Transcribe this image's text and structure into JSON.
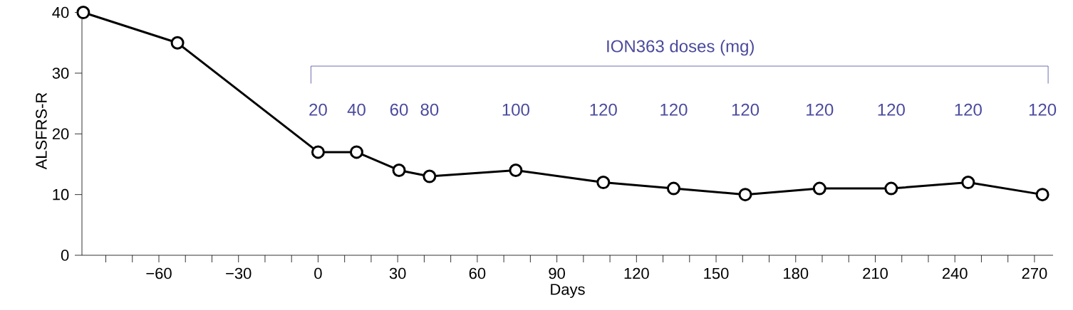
{
  "chart_data": {
    "type": "line",
    "xlabel": "Days",
    "ylabel": "ALSFRS-R",
    "x": [
      -88.5,
      -53,
      0,
      14.5,
      30.5,
      42,
      74.5,
      107.5,
      134,
      161,
      189,
      216,
      245,
      273
    ],
    "series": [
      {
        "color": "#000000",
        "values": [
          40,
          35,
          17,
          17,
          14,
          13,
          14,
          12,
          11,
          10,
          11,
          11,
          12,
          10
        ]
      }
    ],
    "marker": "circle",
    "line_style": "solid",
    "grid": false,
    "xlim": [
      -89,
      277
    ],
    "ylim": [
      0,
      41
    ],
    "xticks": [
      {
        "value": -80,
        "label": null
      },
      {
        "value": -70,
        "label": null
      },
      {
        "value": -60,
        "label": "−60"
      },
      {
        "value": -50,
        "label": null
      },
      {
        "value": -40,
        "label": null
      },
      {
        "value": -30,
        "label": "−30"
      },
      {
        "value": -20,
        "label": null
      },
      {
        "value": -10,
        "label": null
      },
      0,
      {
        "value": 10,
        "label": null
      },
      {
        "value": 20,
        "label": null
      },
      30,
      {
        "value": 40,
        "label": null
      },
      {
        "value": 50,
        "label": null
      },
      60,
      {
        "value": 70,
        "label": null
      },
      {
        "value": 80,
        "label": null
      },
      90,
      {
        "value": 100,
        "label": null
      },
      {
        "value": 110,
        "label": null
      },
      120,
      {
        "value": 130,
        "label": null
      },
      {
        "value": 140,
        "label": null
      },
      150,
      {
        "value": 160,
        "label": null
      },
      {
        "value": 170,
        "label": null
      },
      180,
      {
        "value": 190,
        "label": null
      },
      {
        "value": 200,
        "label": null
      },
      210,
      {
        "value": 220,
        "label": null
      },
      {
        "value": 230,
        "label": null
      },
      240,
      {
        "value": 250,
        "label": null
      },
      {
        "value": 260,
        "label": null
      },
      270
    ],
    "yticks": [
      0,
      10,
      20,
      30,
      40
    ],
    "annotations": [
      "ION363 doses (mg)",
      "20",
      "40",
      "60",
      "80",
      "100",
      "120",
      "120",
      "120",
      "120",
      "120",
      "120",
      "120"
    ]
  }
}
